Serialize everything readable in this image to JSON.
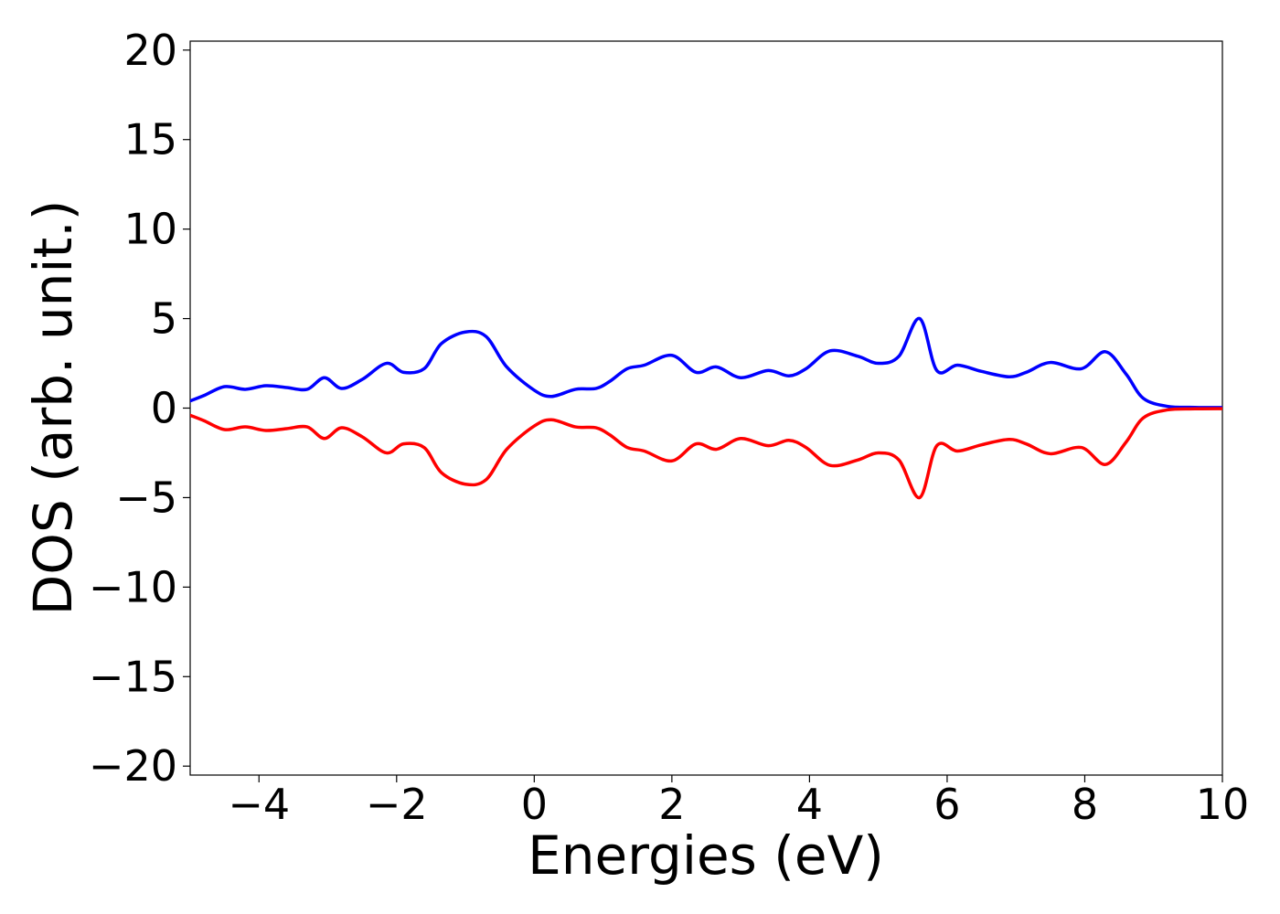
{
  "chart_data": {
    "type": "line",
    "title": "",
    "xlabel": "Energies (eV)",
    "ylabel": "DOS (arb. unit.)",
    "xlim": [
      -5,
      10
    ],
    "ylim": [
      -20.5,
      20.5
    ],
    "grid": false,
    "legend": "none",
    "xticks": [
      -4,
      -2,
      0,
      2,
      4,
      6,
      8,
      10
    ],
    "xtick_labels": [
      "−4",
      "−2",
      "0",
      "2",
      "4",
      "6",
      "8",
      "10"
    ],
    "yticks": [
      20,
      15,
      10,
      5,
      0,
      -5,
      -10,
      -15,
      -20
    ],
    "ytick_labels": [
      "20",
      "15",
      "10",
      "5",
      "0",
      "−5",
      "−10",
      "−15",
      "−20"
    ],
    "series": [
      {
        "color": "#0000ff",
        "x": [
          -5.0,
          -4.8,
          -4.5,
          -4.2,
          -3.9,
          -3.6,
          -3.3,
          -3.05,
          -2.8,
          -2.5,
          -2.15,
          -1.9,
          -1.6,
          -1.35,
          -1.0,
          -0.7,
          -0.4,
          0.0,
          0.25,
          0.6,
          0.9,
          1.1,
          1.35,
          1.6,
          2.0,
          2.35,
          2.65,
          3.0,
          3.4,
          3.7,
          3.95,
          4.3,
          4.7,
          5.0,
          5.3,
          5.6,
          5.85,
          6.15,
          6.5,
          6.9,
          7.15,
          7.5,
          7.95,
          8.3,
          8.6,
          8.85,
          9.2,
          9.6,
          10.0
        ],
        "y": [
          0.4,
          0.7,
          1.2,
          1.05,
          1.25,
          1.15,
          1.05,
          1.7,
          1.1,
          1.6,
          2.5,
          2.0,
          2.2,
          3.6,
          4.25,
          4.0,
          2.3,
          1.0,
          0.65,
          1.05,
          1.1,
          1.5,
          2.2,
          2.4,
          2.95,
          2.0,
          2.3,
          1.7,
          2.1,
          1.8,
          2.2,
          3.2,
          2.9,
          2.5,
          2.9,
          5.0,
          2.1,
          2.4,
          2.05,
          1.75,
          2.0,
          2.55,
          2.2,
          3.15,
          1.9,
          0.55,
          0.1,
          0.04,
          0.03
        ]
      },
      {
        "color": "#ff0000",
        "x": [
          -5.0,
          -4.8,
          -4.5,
          -4.2,
          -3.9,
          -3.6,
          -3.3,
          -3.05,
          -2.8,
          -2.5,
          -2.15,
          -1.9,
          -1.6,
          -1.35,
          -1.0,
          -0.7,
          -0.4,
          0.0,
          0.25,
          0.6,
          0.9,
          1.1,
          1.35,
          1.6,
          2.0,
          2.35,
          2.65,
          3.0,
          3.4,
          3.7,
          3.95,
          4.3,
          4.7,
          5.0,
          5.3,
          5.6,
          5.85,
          6.15,
          6.5,
          6.9,
          7.15,
          7.5,
          7.95,
          8.3,
          8.6,
          8.85,
          9.2,
          9.6,
          10.0
        ],
        "y": [
          -0.4,
          -0.7,
          -1.2,
          -1.05,
          -1.25,
          -1.15,
          -1.05,
          -1.7,
          -1.1,
          -1.6,
          -2.5,
          -2.0,
          -2.2,
          -3.6,
          -4.25,
          -4.0,
          -2.3,
          -1.0,
          -0.65,
          -1.05,
          -1.1,
          -1.5,
          -2.2,
          -2.4,
          -2.95,
          -2.0,
          -2.3,
          -1.7,
          -2.1,
          -1.8,
          -2.2,
          -3.2,
          -2.9,
          -2.5,
          -2.9,
          -5.0,
          -2.1,
          -2.4,
          -2.05,
          -1.75,
          -2.0,
          -2.55,
          -2.2,
          -3.15,
          -1.9,
          -0.55,
          -0.1,
          -0.04,
          -0.03
        ]
      }
    ]
  }
}
